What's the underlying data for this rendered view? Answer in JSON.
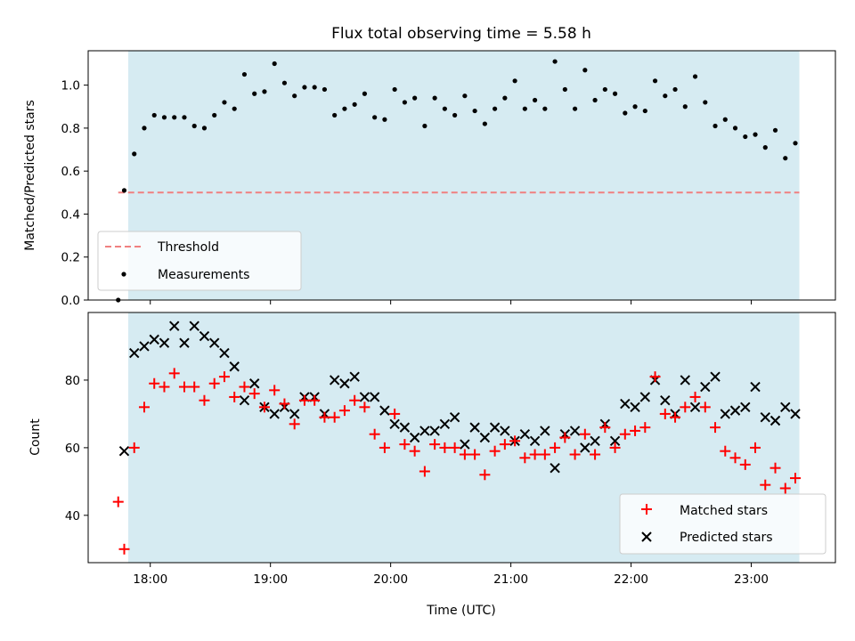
{
  "chart_data": [
    {
      "type": "scatter",
      "title": "Flux total observing time = 5.58 h",
      "xlabel": "",
      "ylabel": "Matched/Predicted stars",
      "xlim": [
        "17:29",
        "23:42"
      ],
      "ylim": [
        0,
        1.16
      ],
      "yticks": [
        "0.0",
        "0.2",
        "0.4",
        "0.6",
        "0.8",
        "1.0"
      ],
      "xticks": [
        "18:00",
        "19:00",
        "20:00",
        "21:00",
        "22:00",
        "23:00"
      ],
      "observing_window": [
        "17:49",
        "23:24"
      ],
      "window_color": "#add8e6",
      "legend": "lower left",
      "grid": false,
      "threshold": {
        "name": "Threshold",
        "value": 0.5,
        "x": [
          "17:44",
          "23:24"
        ],
        "color": "#f08080"
      },
      "series": [
        {
          "name": "Measurements",
          "color": "#000000",
          "x": [
            "17:44",
            "17:47",
            "17:52",
            "17:57",
            "18:02",
            "18:07",
            "18:12",
            "18:17",
            "18:22",
            "18:27",
            "18:32",
            "18:37",
            "18:42",
            "18:47",
            "18:52",
            "18:57",
            "19:02",
            "19:07",
            "19:12",
            "19:17",
            "19:22",
            "19:27",
            "19:32",
            "19:37",
            "19:42",
            "19:47",
            "19:52",
            "19:57",
            "20:02",
            "20:07",
            "20:12",
            "20:17",
            "20:22",
            "20:27",
            "20:32",
            "20:37",
            "20:42",
            "20:47",
            "20:52",
            "20:57",
            "21:02",
            "21:07",
            "21:12",
            "21:17",
            "21:22",
            "21:27",
            "21:32",
            "21:37",
            "21:42",
            "21:47",
            "21:52",
            "21:57",
            "22:02",
            "22:07",
            "22:12",
            "22:17",
            "22:22",
            "22:27",
            "22:32",
            "22:37",
            "22:42",
            "22:47",
            "22:52",
            "22:57",
            "23:02",
            "23:07",
            "23:12",
            "23:17",
            "23:22"
          ],
          "y": [
            0.0,
            0.51,
            0.68,
            0.8,
            0.86,
            0.85,
            0.85,
            0.85,
            0.81,
            0.8,
            0.86,
            0.92,
            0.89,
            1.05,
            0.96,
            0.97,
            1.1,
            1.01,
            0.95,
            0.99,
            0.99,
            0.98,
            0.86,
            0.89,
            0.91,
            0.96,
            0.85,
            0.84,
            0.98,
            0.92,
            0.94,
            0.81,
            0.94,
            0.89,
            0.86,
            0.95,
            0.88,
            0.82,
            0.89,
            0.94,
            1.02,
            0.89,
            0.93,
            0.89,
            1.11,
            0.98,
            0.89,
            1.07,
            0.93,
            0.98,
            0.96,
            0.87,
            0.9,
            0.88,
            1.02,
            0.95,
            0.98,
            0.9,
            1.04,
            0.92,
            0.81,
            0.84,
            0.8,
            0.76,
            0.77,
            0.71,
            0.79,
            0.66,
            0.73
          ]
        }
      ]
    },
    {
      "type": "scatter",
      "title": "",
      "xlabel": "Time (UTC)",
      "ylabel": "Count",
      "xlim": [
        "17:29",
        "23:42"
      ],
      "ylim": [
        26,
        100
      ],
      "yticks": [
        "40",
        "60",
        "80"
      ],
      "xticks": [
        "18:00",
        "19:00",
        "20:00",
        "21:00",
        "22:00",
        "23:00"
      ],
      "observing_window": [
        "17:49",
        "23:24"
      ],
      "window_color": "#add8e6",
      "legend": "lower right",
      "grid": false,
      "series": [
        {
          "name": "Matched stars",
          "marker": "+",
          "color": "#ff0000",
          "x": [
            "17:44",
            "17:47",
            "17:52",
            "17:57",
            "18:02",
            "18:07",
            "18:12",
            "18:17",
            "18:22",
            "18:27",
            "18:32",
            "18:37",
            "18:42",
            "18:47",
            "18:52",
            "18:57",
            "19:02",
            "19:07",
            "19:12",
            "19:17",
            "19:22",
            "19:27",
            "19:32",
            "19:37",
            "19:42",
            "19:47",
            "19:52",
            "19:57",
            "20:02",
            "20:07",
            "20:12",
            "20:17",
            "20:22",
            "20:27",
            "20:32",
            "20:37",
            "20:42",
            "20:47",
            "20:52",
            "20:57",
            "21:02",
            "21:07",
            "21:12",
            "21:17",
            "21:22",
            "21:27",
            "21:32",
            "21:37",
            "21:42",
            "21:47",
            "21:52",
            "21:57",
            "22:02",
            "22:07",
            "22:12",
            "22:17",
            "22:22",
            "22:27",
            "22:32",
            "22:37",
            "22:42",
            "22:47",
            "22:52",
            "22:57",
            "23:02",
            "23:07",
            "23:12",
            "23:17",
            "23:22"
          ],
          "y": [
            44,
            30,
            60,
            72,
            79,
            78,
            82,
            78,
            78,
            74,
            79,
            81,
            75,
            78,
            76,
            72,
            77,
            73,
            67,
            74,
            74,
            69,
            69,
            71,
            74,
            72,
            64,
            60,
            70,
            61,
            59,
            53,
            61,
            60,
            60,
            58,
            58,
            52,
            59,
            61,
            62,
            57,
            58,
            58,
            60,
            63,
            58,
            64,
            58,
            66,
            60,
            64,
            65,
            66,
            81,
            70,
            69,
            72,
            75,
            72,
            66,
            59,
            57,
            55,
            60,
            49,
            54,
            48,
            51
          ]
        },
        {
          "name": "Predicted stars",
          "marker": "x",
          "color": "#000000",
          "x": [
            "17:47",
            "17:52",
            "17:57",
            "18:02",
            "18:07",
            "18:12",
            "18:17",
            "18:22",
            "18:27",
            "18:32",
            "18:37",
            "18:42",
            "18:47",
            "18:52",
            "18:57",
            "19:02",
            "19:07",
            "19:12",
            "19:17",
            "19:22",
            "19:27",
            "19:32",
            "19:37",
            "19:42",
            "19:47",
            "19:52",
            "19:57",
            "20:02",
            "20:07",
            "20:12",
            "20:17",
            "20:22",
            "20:27",
            "20:32",
            "20:37",
            "20:42",
            "20:47",
            "20:52",
            "20:57",
            "21:02",
            "21:07",
            "21:12",
            "21:17",
            "21:22",
            "21:27",
            "21:32",
            "21:37",
            "21:42",
            "21:47",
            "21:52",
            "21:57",
            "22:02",
            "22:07",
            "22:12",
            "22:17",
            "22:22",
            "22:27",
            "22:32",
            "22:37",
            "22:42",
            "22:47",
            "22:52",
            "22:57",
            "23:02",
            "23:07",
            "23:12",
            "23:17",
            "23:22"
          ],
          "y": [
            59,
            88,
            90,
            92,
            91,
            96,
            91,
            96,
            93,
            91,
            88,
            84,
            74,
            79,
            72,
            70,
            72,
            70,
            75,
            75,
            70,
            80,
            79,
            81,
            75,
            75,
            71,
            67,
            66,
            63,
            65,
            65,
            67,
            69,
            61,
            66,
            63,
            66,
            65,
            62,
            64,
            62,
            65,
            54,
            64,
            65,
            60,
            62,
            67,
            62,
            73,
            72,
            75,
            80,
            74,
            70,
            80,
            72,
            78,
            81,
            70,
            71,
            72,
            78,
            69,
            68,
            72,
            70
          ]
        }
      ]
    }
  ]
}
